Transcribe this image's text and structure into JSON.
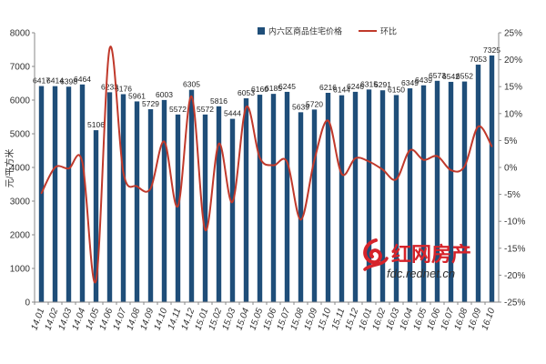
{
  "chart_data": {
    "type": "bar",
    "title": "",
    "ylabel": "元/平方米",
    "ylim": [
      0,
      8000
    ],
    "yticks": [
      0,
      1000,
      2000,
      3000,
      4000,
      5000,
      6000,
      7000,
      8000
    ],
    "y2lim": [
      -25,
      25
    ],
    "y2ticks": [
      "-25%",
      "-20%",
      "-15%",
      "-10%",
      "-5%",
      "0%",
      "5%",
      "10%",
      "15%",
      "20%",
      "25%"
    ],
    "categories": [
      "14.01",
      "14.02",
      "14.03",
      "14.04",
      "14.05",
      "14.06",
      "14.07",
      "14.08",
      "14.09",
      "14.10",
      "14.11",
      "14.12",
      "15.01",
      "15.02",
      "15.03",
      "15.04",
      "15.05",
      "15.06",
      "15.07",
      "15.08",
      "15.09",
      "15.10",
      "15.11",
      "15.12",
      "16.01",
      "16.02",
      "16.03",
      "16.04",
      "16.05",
      "16.06",
      "16.07",
      "16.08",
      "16.09",
      "16.10"
    ],
    "series": [
      {
        "name": "内六区商品住宅价格",
        "type": "bar",
        "axis": "left",
        "color": "#1f4e79",
        "values": [
          6417,
          6414,
          6398,
          6464,
          5106,
          6233,
          6176,
          5961,
          5729,
          6003,
          5572,
          6305,
          5572,
          5816,
          5444,
          6053,
          6160,
          6185,
          6245,
          5639,
          5720,
          6216,
          6144,
          6246,
          6315,
          6291,
          6150,
          6349,
          6439,
          6573,
          6542,
          6552,
          7053,
          7325
        ],
        "labels": [
          "6417",
          "6414",
          "6398",
          "6464",
          "5106",
          "6233",
          "6176",
          "5961",
          "5729",
          "6003",
          "5572",
          "6305",
          "5572",
          "5816",
          "5444",
          "6053",
          "6160",
          "6185",
          "6245",
          "5639",
          "5720",
          "6216",
          "6144",
          "6246",
          "6315",
          "6291",
          "6150",
          "6349",
          "6439",
          "6573",
          "6542",
          "6552",
          "7053",
          "7325"
        ]
      },
      {
        "name": "环比",
        "type": "line",
        "axis": "right",
        "color": "#c0392b",
        "values": [
          -4.8,
          0.0,
          -0.2,
          1.0,
          -21.0,
          22.1,
          -0.9,
          -3.5,
          -3.9,
          4.8,
          -7.2,
          13.2,
          -11.6,
          4.4,
          -6.4,
          11.2,
          1.8,
          0.4,
          1.0,
          -9.7,
          1.4,
          8.7,
          -1.2,
          1.7,
          1.1,
          -0.4,
          -2.2,
          3.2,
          1.4,
          2.1,
          -0.5,
          0.2,
          7.6,
          3.9
        ]
      }
    ],
    "legend_position": "top"
  },
  "watermark": {
    "brand": "红网房产",
    "url": "fdc.rednet.cn"
  }
}
